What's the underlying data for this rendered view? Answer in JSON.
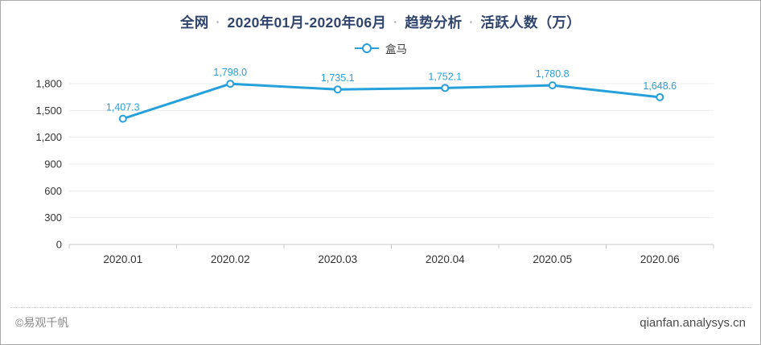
{
  "page": {
    "background": "#ffffff",
    "border_color": "#a9a9a9"
  },
  "header": {
    "title_segments": [
      "全网",
      "2020年01月-2020年06月",
      "趋势分析",
      "活跃人数（万）"
    ],
    "separator": "·",
    "title_color": "#30456e",
    "separator_color": "#9aa3ad"
  },
  "chart_data": {
    "type": "line",
    "title": "全网 · 2020年01月-2020年06月 · 趋势分析 · 活跃人数（万）",
    "xlabel": "",
    "ylabel": "活跃人数（万）",
    "categories": [
      "2020.01",
      "2020.02",
      "2020.03",
      "2020.04",
      "2020.05",
      "2020.06"
    ],
    "series": [
      {
        "name": "盒马",
        "color": "#25a0da",
        "marker": "circle-open",
        "values": [
          1407.3,
          1798.0,
          1735.1,
          1752.1,
          1780.8,
          1648.6
        ],
        "data_labels": [
          "1,407.3",
          "1,798.0",
          "1,735.1",
          "1,752.1",
          "1,780.8",
          "1,648.6"
        ]
      }
    ],
    "ylim": [
      0,
      1800
    ],
    "y_ticks": [
      0,
      300,
      600,
      900,
      1200,
      1500,
      1800
    ],
    "y_tick_labels": [
      "0",
      "300",
      "600",
      "900",
      "1,200",
      "1,500",
      "1,800"
    ],
    "grid": true,
    "legend_position": "top-center"
  },
  "footer": {
    "copyright": "©易观千帆",
    "site": "qianfan.analysys.cn"
  },
  "colors": {
    "accent_blue": "#25a0da",
    "grid_line": "#ececec",
    "axis_line": "#c9c9c9",
    "tick_text": "#333333"
  }
}
